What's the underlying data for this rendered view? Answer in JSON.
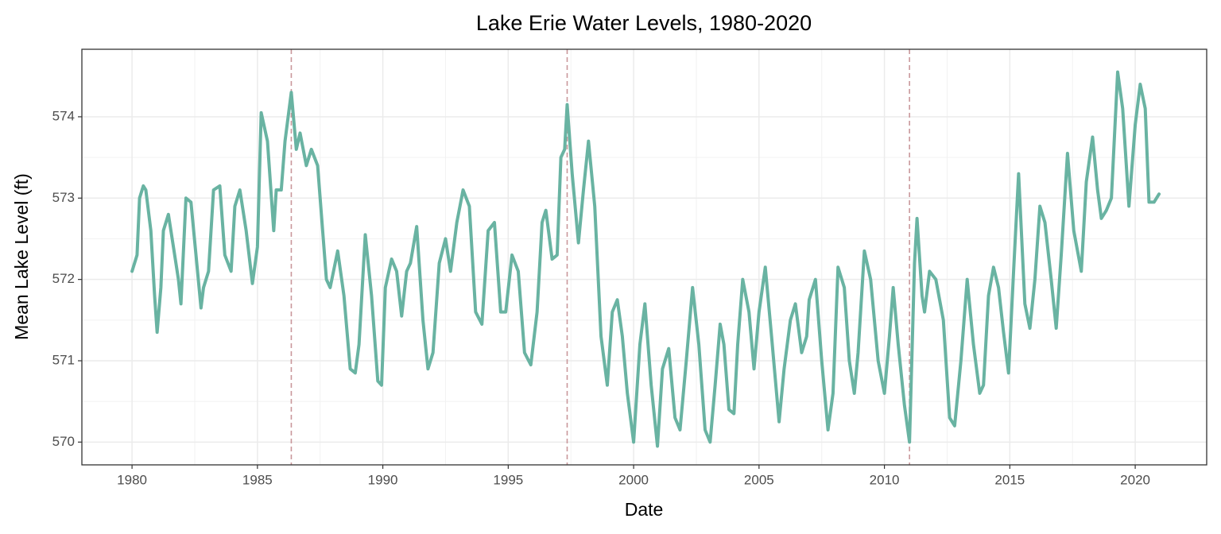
{
  "chart_data": {
    "type": "line",
    "title": "Lake Erie Water Levels, 1980-2020",
    "x_label": "Date",
    "y_label": "Mean Lake Level (ft)",
    "xlim": [
      1978.0,
      2022.85
    ],
    "ylim": [
      569.72,
      574.83
    ],
    "xticks": [
      1980,
      1985,
      1990,
      1995,
      2000,
      2005,
      2010,
      2015,
      2020
    ],
    "yticks": [
      570,
      571,
      572,
      573,
      574
    ],
    "grid": true,
    "minor_grid": true,
    "vlines": [
      1986.35,
      1997.35,
      2011.0
    ],
    "vline_color": "#c9979b",
    "series": [
      {
        "name": "Mean Lake Level",
        "color": "#69b3a2",
        "x": [
          1980.0,
          1980.2,
          1980.3,
          1980.45,
          1980.55,
          1980.75,
          1980.9,
          1981.0,
          1981.15,
          1981.25,
          1981.45,
          1981.65,
          1981.85,
          1981.95,
          1982.15,
          1982.35,
          1982.55,
          1982.75,
          1982.85,
          1983.05,
          1983.25,
          1983.5,
          1983.7,
          1983.95,
          1984.1,
          1984.3,
          1984.55,
          1984.8,
          1985.0,
          1985.15,
          1985.4,
          1985.65,
          1985.75,
          1985.95,
          1986.1,
          1986.35,
          1986.55,
          1986.7,
          1986.95,
          1987.15,
          1987.4,
          1987.75,
          1987.9,
          1988.2,
          1988.45,
          1988.7,
          1988.9,
          1989.05,
          1989.3,
          1989.55,
          1989.8,
          1989.95,
          1990.1,
          1990.35,
          1990.55,
          1990.75,
          1990.95,
          1991.1,
          1991.35,
          1991.6,
          1991.8,
          1992.0,
          1992.25,
          1992.5,
          1992.7,
          1992.95,
          1993.2,
          1993.45,
          1993.7,
          1993.95,
          1994.2,
          1994.45,
          1994.7,
          1994.9,
          1995.15,
          1995.4,
          1995.65,
          1995.9,
          1996.15,
          1996.35,
          1996.5,
          1996.75,
          1996.95,
          1997.1,
          1997.25,
          1997.35,
          1997.55,
          1997.8,
          1998.0,
          1998.2,
          1998.45,
          1998.7,
          1998.95,
          1999.15,
          1999.35,
          1999.55,
          1999.75,
          2000.0,
          2000.25,
          2000.45,
          2000.7,
          2000.95,
          2001.15,
          2001.4,
          2001.65,
          2001.85,
          2002.1,
          2002.35,
          2002.6,
          2002.85,
          2003.05,
          2003.25,
          2003.45,
          2003.6,
          2003.8,
          2004.0,
          2004.15,
          2004.35,
          2004.6,
          2004.8,
          2005.0,
          2005.25,
          2005.5,
          2005.8,
          2006.0,
          2006.25,
          2006.45,
          2006.7,
          2006.9,
          2007.0,
          2007.25,
          2007.5,
          2007.75,
          2007.95,
          2008.15,
          2008.4,
          2008.6,
          2008.8,
          2008.95,
          2009.2,
          2009.45,
          2009.75,
          2010.0,
          2010.2,
          2010.35,
          2010.55,
          2010.8,
          2011.0,
          2011.2,
          2011.3,
          2011.5,
          2011.6,
          2011.8,
          2012.05,
          2012.35,
          2012.6,
          2012.8,
          2013.05,
          2013.3,
          2013.55,
          2013.8,
          2013.95,
          2014.15,
          2014.35,
          2014.55,
          2014.75,
          2014.95,
          2015.15,
          2015.35,
          2015.6,
          2015.8,
          2016.0,
          2016.2,
          2016.4,
          2016.65,
          2016.85,
          2017.05,
          2017.3,
          2017.55,
          2017.85,
          2018.05,
          2018.3,
          2018.5,
          2018.65,
          2018.85,
          2019.05,
          2019.3,
          2019.5,
          2019.75,
          2020.0,
          2020.2,
          2020.4,
          2020.55,
          2020.75,
          2020.95
        ],
        "values": [
          572.1,
          572.3,
          573.0,
          573.15,
          573.1,
          572.6,
          571.8,
          571.35,
          571.9,
          572.6,
          572.8,
          572.4,
          572.0,
          571.7,
          573.0,
          572.95,
          572.3,
          571.65,
          571.9,
          572.1,
          573.1,
          573.15,
          572.3,
          572.1,
          572.9,
          573.1,
          572.6,
          571.95,
          572.4,
          574.05,
          573.7,
          572.6,
          573.1,
          573.1,
          573.7,
          574.3,
          573.6,
          573.8,
          573.4,
          573.6,
          573.4,
          572.0,
          571.9,
          572.35,
          571.8,
          570.9,
          570.85,
          571.2,
          572.55,
          571.8,
          570.75,
          570.7,
          571.9,
          572.25,
          572.1,
          571.55,
          572.1,
          572.2,
          572.65,
          571.5,
          570.9,
          571.1,
          572.2,
          572.5,
          572.1,
          572.7,
          573.1,
          572.9,
          571.6,
          571.45,
          572.6,
          572.7,
          571.6,
          571.6,
          572.3,
          572.1,
          571.1,
          570.95,
          571.6,
          572.7,
          572.85,
          572.25,
          572.3,
          573.5,
          573.6,
          574.15,
          573.3,
          572.45,
          573.1,
          573.7,
          572.9,
          571.3,
          570.7,
          571.6,
          571.75,
          571.3,
          570.6,
          570.0,
          571.2,
          571.7,
          570.7,
          569.95,
          570.9,
          571.15,
          570.3,
          570.15,
          571.0,
          571.9,
          571.2,
          570.15,
          570.0,
          570.7,
          571.45,
          571.2,
          570.4,
          570.35,
          571.2,
          572.0,
          571.6,
          570.9,
          571.6,
          572.15,
          571.3,
          570.25,
          570.9,
          571.5,
          571.7,
          571.1,
          571.3,
          571.75,
          572.0,
          571.0,
          570.15,
          570.6,
          572.15,
          571.9,
          571.0,
          570.6,
          571.1,
          572.35,
          572.0,
          571.0,
          570.6,
          571.3,
          571.9,
          571.2,
          570.45,
          570.0,
          572.2,
          572.75,
          571.8,
          571.6,
          572.1,
          572.0,
          571.5,
          570.3,
          570.2,
          571.0,
          572.0,
          571.2,
          570.6,
          570.7,
          571.8,
          572.15,
          571.9,
          571.35,
          570.85,
          572.1,
          573.3,
          571.7,
          571.4,
          572.0,
          572.9,
          572.7,
          572.0,
          571.4,
          572.3,
          573.55,
          572.6,
          572.1,
          573.2,
          573.75,
          573.1,
          572.75,
          572.85,
          573.0,
          574.55,
          574.1,
          572.9,
          573.9,
          574.4,
          574.1,
          572.95,
          572.95,
          573.05
        ]
      }
    ]
  }
}
